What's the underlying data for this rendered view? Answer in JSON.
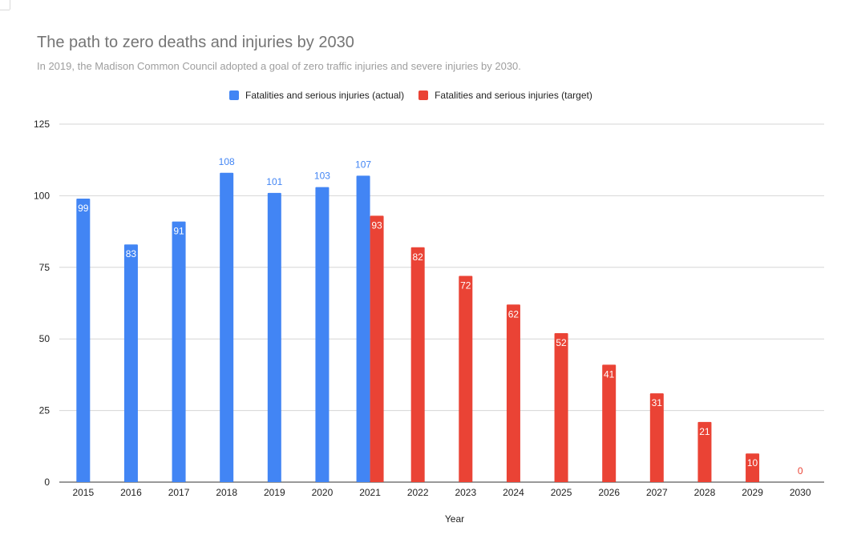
{
  "chart_data": {
    "type": "bar",
    "title": "The path to zero deaths and injuries by 2030",
    "subtitle": "In 2019, the Madison Common Council adopted a goal of zero traffic injuries and severe injuries by 2030.",
    "xlabel": "Year",
    "ylabel": "",
    "categories": [
      "2015",
      "2016",
      "2017",
      "2018",
      "2019",
      "2020",
      "2021",
      "2022",
      "2023",
      "2024",
      "2025",
      "2026",
      "2027",
      "2028",
      "2029",
      "2030"
    ],
    "ylim": [
      0,
      125
    ],
    "yticks": [
      0,
      25,
      50,
      75,
      100,
      125
    ],
    "grid": true,
    "legend_position": "top",
    "series": [
      {
        "name": "Fatalities and serious injuries (actual)",
        "color": "#4285f4",
        "values": [
          99,
          83,
          91,
          108,
          101,
          103,
          107,
          null,
          null,
          null,
          null,
          null,
          null,
          null,
          null,
          null
        ],
        "label_placement": [
          "inside",
          "inside",
          "inside",
          "above",
          "above",
          "above",
          "above",
          null,
          null,
          null,
          null,
          null,
          null,
          null,
          null,
          null
        ]
      },
      {
        "name": "Fatalities and serious injuries (target)",
        "color": "#ea4335",
        "values": [
          null,
          null,
          null,
          null,
          null,
          null,
          93,
          82,
          72,
          62,
          52,
          41,
          31,
          21,
          10,
          0
        ],
        "label_placement": [
          null,
          null,
          null,
          null,
          null,
          null,
          "inside",
          "inside",
          "inside",
          "inside",
          "inside",
          "inside",
          "inside",
          "inside",
          "inside",
          "above"
        ]
      }
    ]
  }
}
